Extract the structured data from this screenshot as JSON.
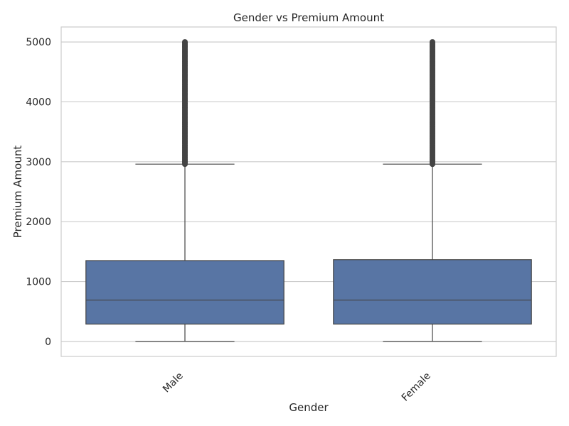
{
  "chart_data": {
    "type": "box",
    "title": "Gender vs Premium Amount",
    "xlabel": "Gender",
    "ylabel": "Premium Amount",
    "categories": [
      "Male",
      "Female"
    ],
    "ylim": [
      -250,
      5250
    ],
    "yticks": [
      0,
      1000,
      2000,
      3000,
      4000,
      5000
    ],
    "grid": true,
    "box_color": "#5875a4",
    "line_color": "#444444",
    "boxes": [
      {
        "category": "Male",
        "whisker_low": 0,
        "q1": 290,
        "median": 690,
        "q3": 1350,
        "whisker_high": 2960,
        "outlier_range": [
          2960,
          5000
        ]
      },
      {
        "category": "Female",
        "whisker_low": 0,
        "q1": 290,
        "median": 690,
        "q3": 1365,
        "whisker_high": 2960,
        "outlier_range": [
          2960,
          5000
        ]
      }
    ]
  }
}
